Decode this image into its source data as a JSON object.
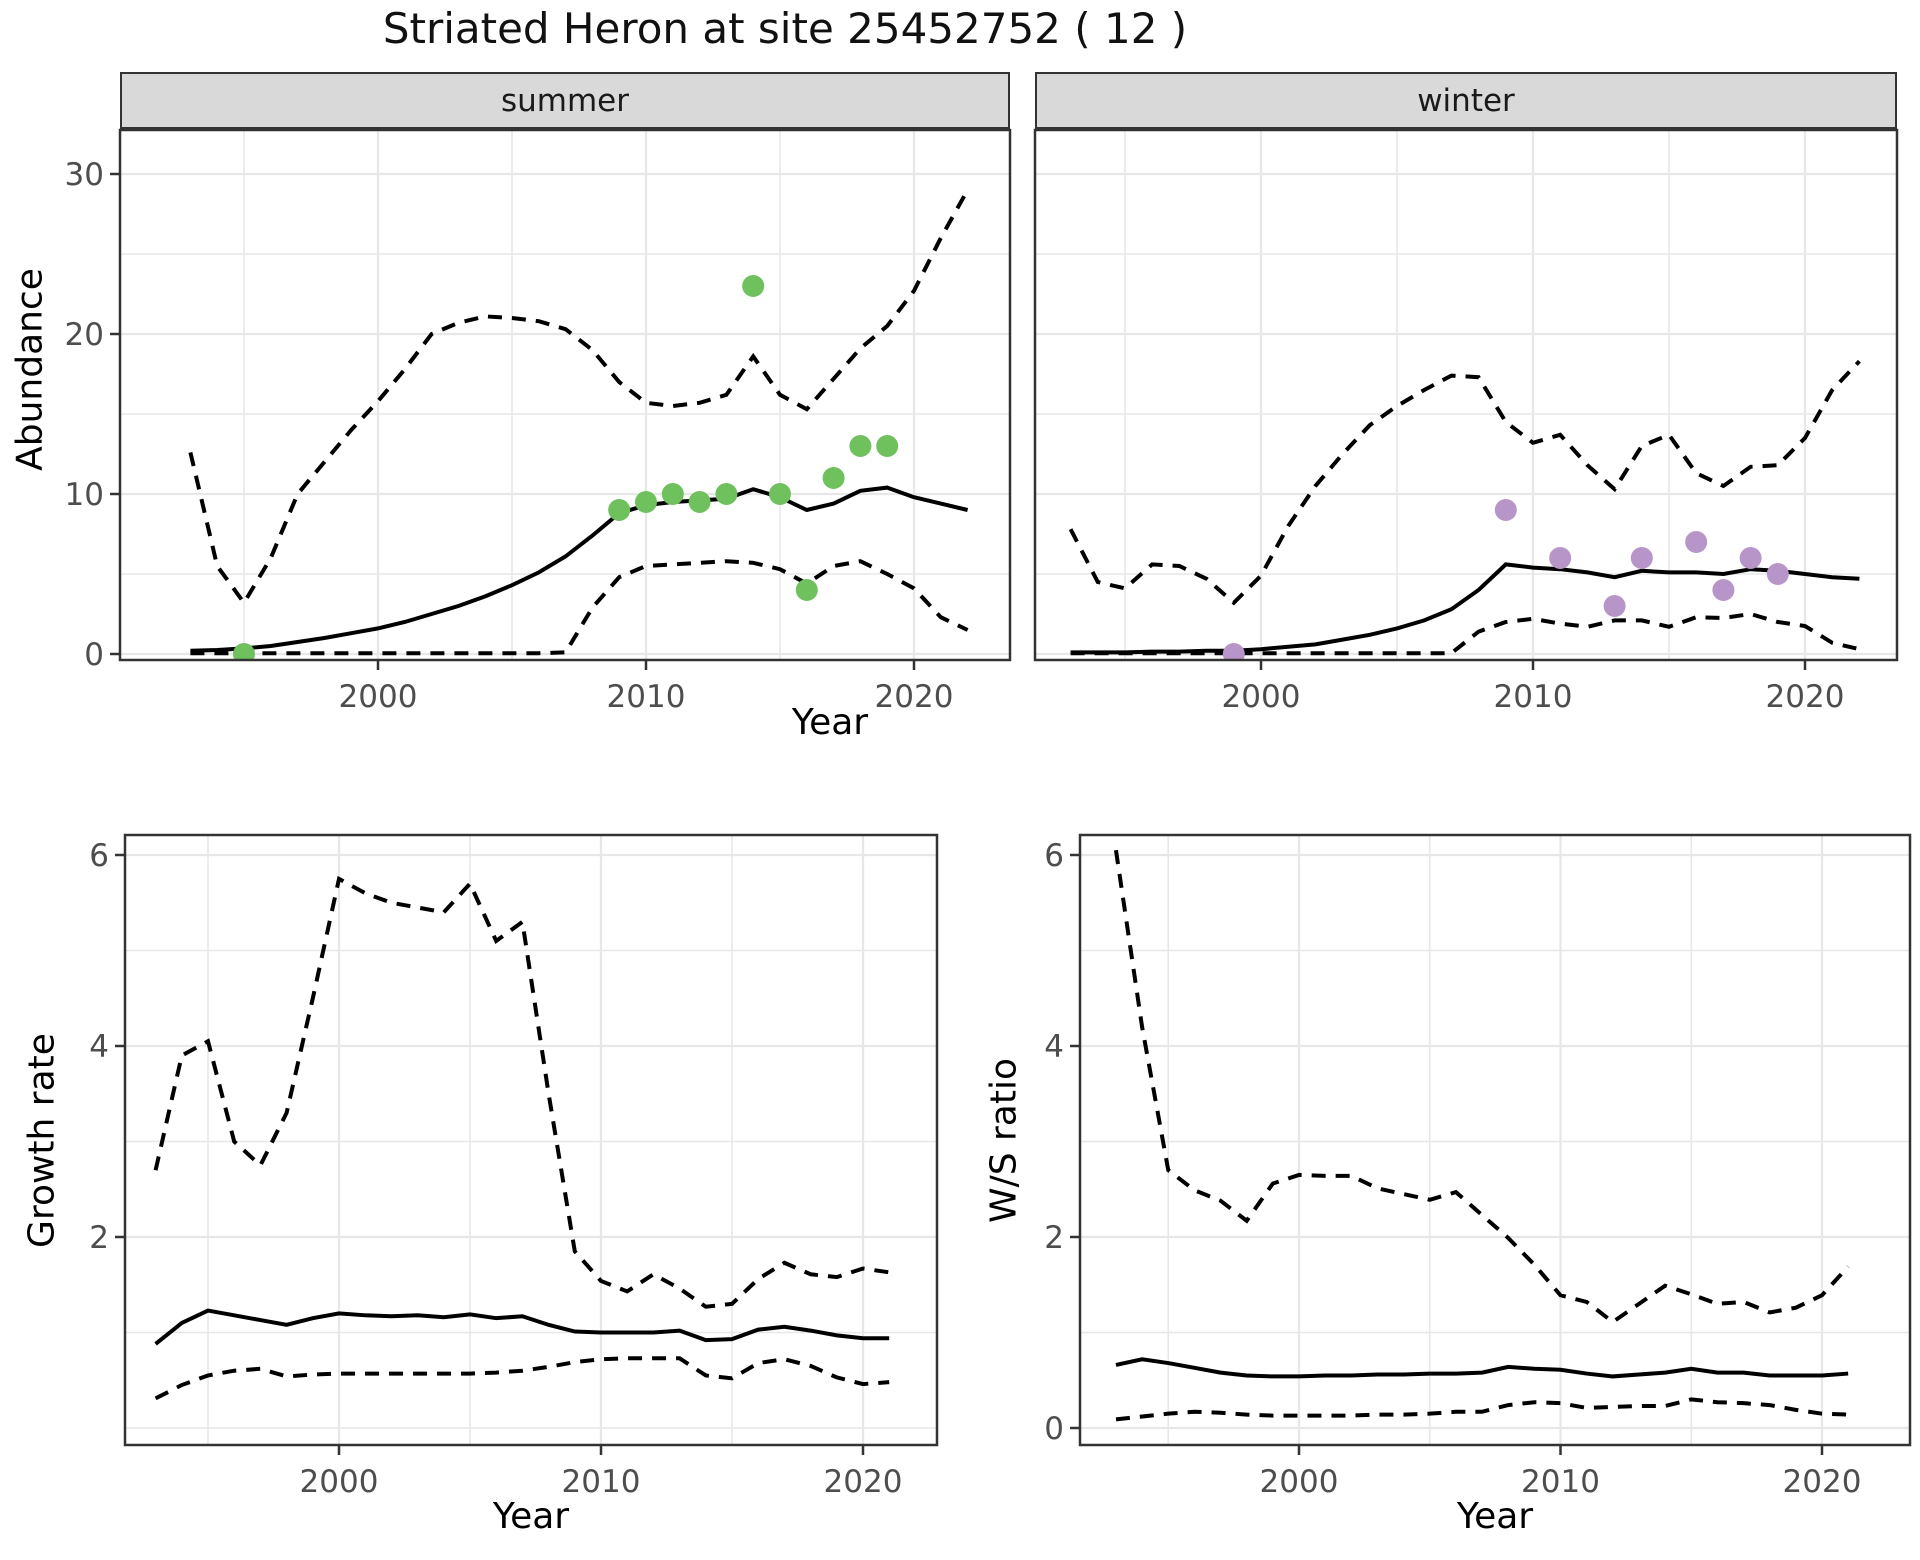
{
  "title": "Striated Heron at site 25452752 ( 12 )",
  "facets": [
    "summer",
    "winter"
  ],
  "labels": {
    "abundance": "Abundance",
    "year": "Year",
    "growth_rate": "Growth rate",
    "ws_ratio": "W/S ratio"
  },
  "colors": {
    "observed_summer": "#6fc15e",
    "observed_winter": "#b795c8",
    "line": "#000000",
    "strip_bg": "#d9d9d9",
    "panel_border": "#333333",
    "grid": "#e7e7e7",
    "tick_text": "#4d4d4d"
  },
  "chart_data": [
    {
      "id": "abundance-summer",
      "type": "line",
      "facet": "summer",
      "xlabel": "Year",
      "ylabel": "Abundance",
      "xlim": [
        1991.5,
        2023.5
      ],
      "ylim": [
        -0.4,
        32.75
      ],
      "xticks": [
        2000,
        2010,
        2020
      ],
      "yticks": [
        0,
        10,
        20,
        30
      ],
      "grid": true,
      "legend": "none",
      "years": [
        1993,
        1994,
        1995,
        1996,
        1997,
        1998,
        1999,
        2000,
        2001,
        2002,
        2003,
        2004,
        2005,
        2006,
        2007,
        2008,
        2009,
        2010,
        2011,
        2012,
        2013,
        2014,
        2015,
        2016,
        2017,
        2018,
        2019,
        2020,
        2021,
        2022
      ],
      "series": [
        {
          "name": "median",
          "style": "solid",
          "values": [
            0.2,
            0.25,
            0.35,
            0.5,
            0.75,
            1.0,
            1.3,
            1.6,
            2.0,
            2.5,
            3.0,
            3.6,
            4.3,
            5.1,
            6.1,
            7.4,
            8.8,
            9.3,
            9.5,
            9.6,
            9.7,
            10.3,
            9.8,
            9.0,
            9.4,
            10.2,
            10.4,
            9.8,
            9.4,
            9.0
          ]
        },
        {
          "name": "upper_ci",
          "style": "dashed",
          "values": [
            12.6,
            5.5,
            3.2,
            6.0,
            10.0,
            12.0,
            14.0,
            15.8,
            17.8,
            20.0,
            20.7,
            21.1,
            21.0,
            20.8,
            20.3,
            19.0,
            17.0,
            15.7,
            15.5,
            15.7,
            16.2,
            18.6,
            16.2,
            15.3,
            17.2,
            19.1,
            20.5,
            22.7,
            26.0,
            29.0
          ]
        },
        {
          "name": "lower_ci",
          "style": "dashed",
          "values": [
            0.05,
            0.05,
            0.05,
            0.05,
            0.05,
            0.05,
            0.05,
            0.05,
            0.05,
            0.05,
            0.05,
            0.05,
            0.05,
            0.05,
            0.1,
            2.9,
            4.8,
            5.5,
            5.6,
            5.7,
            5.8,
            5.7,
            5.3,
            4.4,
            5.5,
            5.8,
            5.0,
            4.1,
            2.3,
            1.5
          ]
        }
      ],
      "points": {
        "name": "observed-abundance-summer",
        "color": "#6fc15e",
        "data": [
          [
            1995,
            0
          ],
          [
            2009,
            9
          ],
          [
            2010,
            9.5
          ],
          [
            2011,
            10
          ],
          [
            2012,
            9.5
          ],
          [
            2013,
            10
          ],
          [
            2014,
            23
          ],
          [
            2015,
            10
          ],
          [
            2016,
            4
          ],
          [
            2017,
            11
          ],
          [
            2018,
            13
          ],
          [
            2019,
            13
          ]
        ]
      }
    },
    {
      "id": "abundance-winter",
      "type": "line",
      "facet": "winter",
      "xlabel": "Year",
      "ylabel": "Abundance",
      "xlim": [
        1991.5,
        2023.5
      ],
      "ylim": [
        -0.4,
        32.75
      ],
      "xticks": [
        2000,
        2010,
        2020
      ],
      "yticks": [
        0,
        10,
        20,
        30
      ],
      "grid": true,
      "legend": "none",
      "years": [
        1993,
        1994,
        1995,
        1996,
        1997,
        1998,
        1999,
        2000,
        2001,
        2002,
        2003,
        2004,
        2005,
        2006,
        2007,
        2008,
        2009,
        2010,
        2011,
        2012,
        2013,
        2014,
        2015,
        2016,
        2017,
        2018,
        2019,
        2020,
        2021,
        2022
      ],
      "series": [
        {
          "name": "median",
          "style": "solid",
          "values": [
            0.1,
            0.1,
            0.1,
            0.15,
            0.15,
            0.2,
            0.2,
            0.3,
            0.45,
            0.6,
            0.9,
            1.2,
            1.6,
            2.1,
            2.8,
            4.0,
            5.6,
            5.4,
            5.3,
            5.1,
            4.8,
            5.2,
            5.1,
            5.1,
            5.0,
            5.3,
            5.2,
            5.0,
            4.8,
            4.7
          ]
        },
        {
          "name": "upper_ci",
          "style": "dashed",
          "values": [
            7.8,
            4.5,
            4.1,
            5.6,
            5.5,
            4.7,
            3.2,
            4.9,
            8.0,
            10.5,
            12.5,
            14.3,
            15.5,
            16.5,
            17.4,
            17.3,
            14.5,
            13.2,
            13.7,
            11.8,
            10.3,
            13.0,
            13.7,
            11.3,
            10.5,
            11.7,
            11.8,
            13.5,
            16.5,
            18.3
          ]
        },
        {
          "name": "lower_ci",
          "style": "dashed",
          "values": [
            0.05,
            0.05,
            0.05,
            0.05,
            0.05,
            0.05,
            0.05,
            0.05,
            0.05,
            0.05,
            0.05,
            0.05,
            0.05,
            0.05,
            0.05,
            1.4,
            2.0,
            2.2,
            1.9,
            1.7,
            2.1,
            2.1,
            1.7,
            2.3,
            2.25,
            2.5,
            2.0,
            1.75,
            0.7,
            0.3
          ]
        }
      ],
      "points": {
        "name": "observed-abundance-winter",
        "color": "#b795c8",
        "data": [
          [
            1999,
            0
          ],
          [
            2009,
            9
          ],
          [
            2011,
            6
          ],
          [
            2013,
            3
          ],
          [
            2014,
            6
          ],
          [
            2016,
            7
          ],
          [
            2017,
            4
          ],
          [
            2018,
            6
          ],
          [
            2019,
            5
          ]
        ]
      }
    },
    {
      "id": "growth-rate",
      "type": "line",
      "xlabel": "Year",
      "ylabel": "Growth rate",
      "xlim": [
        1991.6,
        2022.8
      ],
      "ylim": [
        -0.2,
        6.35
      ],
      "xticks": [
        2000,
        2010,
        2020
      ],
      "yticks": [
        2,
        4,
        6
      ],
      "grid": true,
      "legend": "none",
      "years": [
        1993,
        1994,
        1995,
        1996,
        1997,
        1998,
        1999,
        2000,
        2001,
        2002,
        2003,
        2004,
        2005,
        2006,
        2007,
        2008,
        2009,
        2010,
        2011,
        2012,
        2013,
        2014,
        2015,
        2016,
        2017,
        2018,
        2019,
        2020,
        2021
      ],
      "series": [
        {
          "name": "median",
          "style": "solid",
          "values": [
            0.88,
            1.1,
            1.23,
            1.18,
            1.13,
            1.08,
            1.15,
            1.2,
            1.18,
            1.17,
            1.18,
            1.16,
            1.19,
            1.15,
            1.17,
            1.08,
            1.01,
            1.0,
            1.0,
            1.0,
            1.02,
            0.92,
            0.93,
            1.03,
            1.06,
            1.02,
            0.97,
            0.94,
            0.94
          ]
        },
        {
          "name": "upper_ci",
          "style": "dashed",
          "values": [
            2.7,
            3.9,
            4.05,
            3.0,
            2.75,
            3.3,
            4.5,
            5.75,
            5.6,
            5.5,
            5.45,
            5.4,
            5.7,
            5.1,
            5.3,
            3.5,
            1.85,
            1.54,
            1.43,
            1.61,
            1.46,
            1.27,
            1.3,
            1.56,
            1.73,
            1.61,
            1.58,
            1.67,
            1.63
          ]
        },
        {
          "name": "lower_ci",
          "style": "dashed",
          "values": [
            0.31,
            0.45,
            0.55,
            0.6,
            0.62,
            0.54,
            0.56,
            0.57,
            0.57,
            0.57,
            0.57,
            0.57,
            0.57,
            0.58,
            0.6,
            0.64,
            0.69,
            0.72,
            0.73,
            0.73,
            0.73,
            0.55,
            0.52,
            0.68,
            0.72,
            0.65,
            0.53,
            0.46,
            0.48
          ]
        }
      ]
    },
    {
      "id": "ws-ratio",
      "type": "line",
      "xlabel": "Year",
      "ylabel": "W/S ratio",
      "xlim": [
        1991.6,
        2023.3
      ],
      "ylim": [
        -0.35,
        6.35
      ],
      "xticks": [
        2000,
        2010,
        2020
      ],
      "yticks": [
        0,
        2,
        4,
        6
      ],
      "grid": true,
      "legend": "none",
      "years": [
        1993,
        1994,
        1995,
        1996,
        1997,
        1998,
        1999,
        2000,
        2001,
        2002,
        2003,
        2004,
        2005,
        2006,
        2007,
        2008,
        2009,
        2010,
        2011,
        2012,
        2013,
        2014,
        2015,
        2016,
        2017,
        2018,
        2019,
        2020,
        2021
      ],
      "series": [
        {
          "name": "median",
          "style": "solid",
          "values": [
            0.66,
            0.72,
            0.68,
            0.63,
            0.58,
            0.55,
            0.54,
            0.54,
            0.55,
            0.55,
            0.56,
            0.56,
            0.57,
            0.57,
            0.58,
            0.64,
            0.62,
            0.61,
            0.57,
            0.54,
            0.56,
            0.58,
            0.62,
            0.58,
            0.58,
            0.55,
            0.55,
            0.55,
            0.57
          ]
        },
        {
          "name": "upper_ci",
          "style": "dashed",
          "values": [
            6.05,
            4.2,
            2.7,
            2.49,
            2.38,
            2.17,
            2.56,
            2.65,
            2.64,
            2.64,
            2.51,
            2.45,
            2.39,
            2.47,
            2.23,
            1.99,
            1.71,
            1.39,
            1.32,
            1.11,
            1.3,
            1.49,
            1.4,
            1.3,
            1.32,
            1.21,
            1.26,
            1.39,
            1.69
          ]
        },
        {
          "name": "lower_ci",
          "style": "dashed",
          "values": [
            0.09,
            0.12,
            0.15,
            0.17,
            0.16,
            0.14,
            0.13,
            0.13,
            0.13,
            0.13,
            0.14,
            0.14,
            0.15,
            0.17,
            0.17,
            0.24,
            0.27,
            0.26,
            0.21,
            0.22,
            0.23,
            0.23,
            0.3,
            0.27,
            0.26,
            0.24,
            0.19,
            0.15,
            0.14
          ]
        }
      ]
    }
  ]
}
